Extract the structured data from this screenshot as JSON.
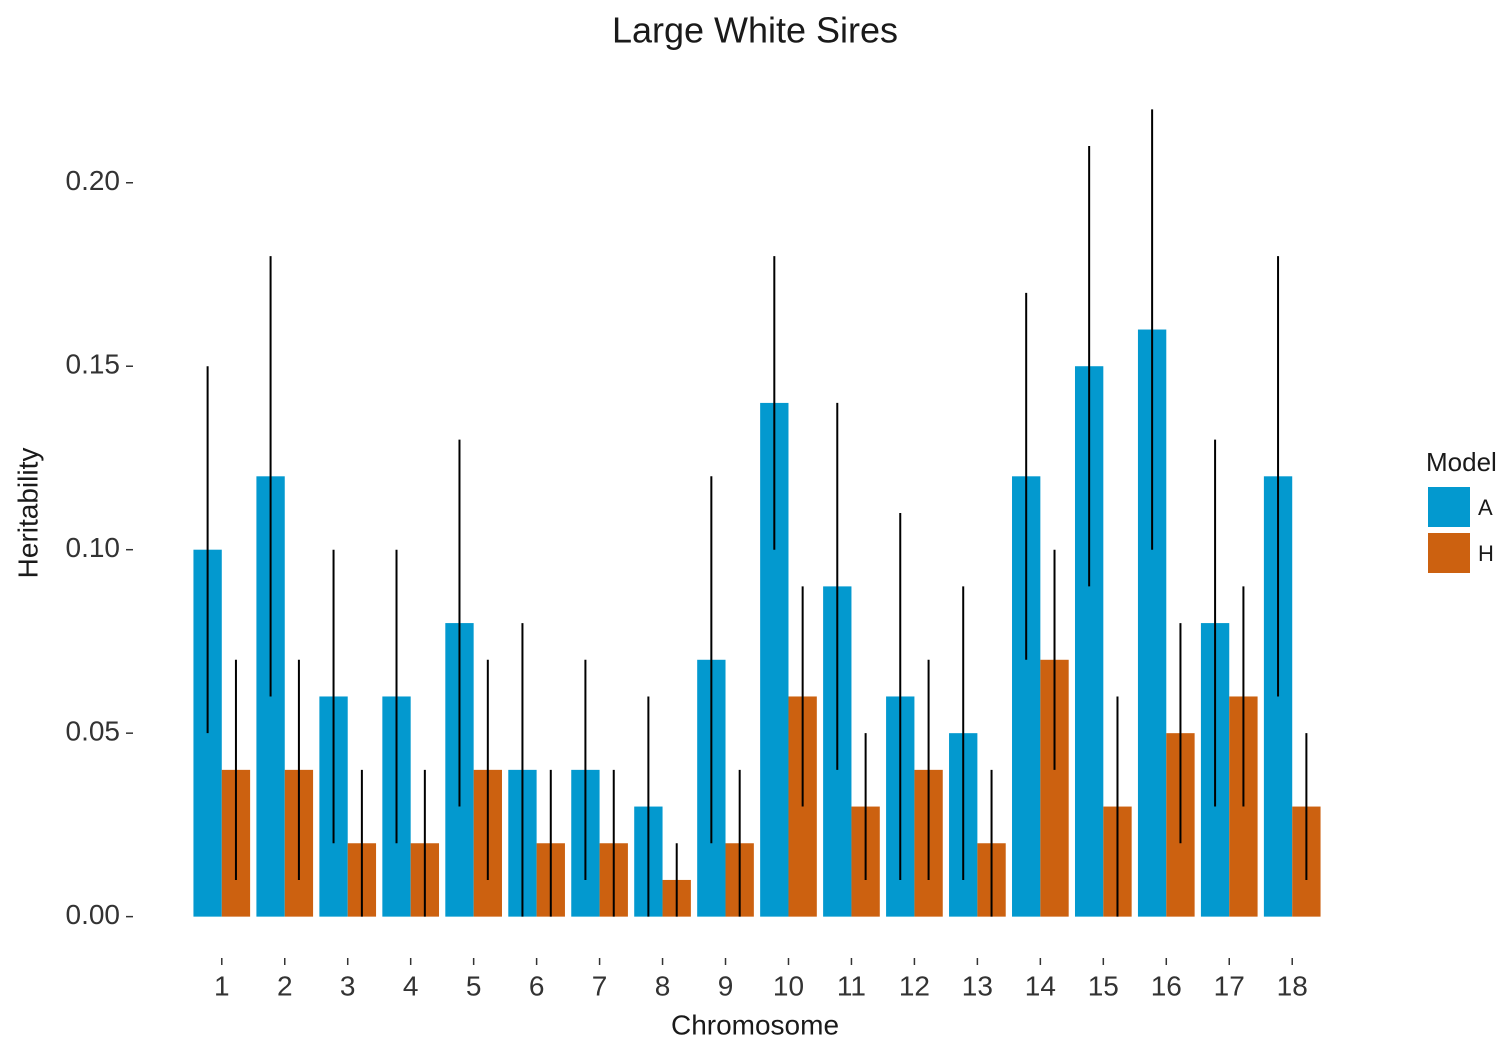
{
  "chart_data": {
    "type": "bar",
    "title": "Large White Sires",
    "x_label": "Chromosome",
    "y_label": "Heritability",
    "categories": [
      "1",
      "2",
      "3",
      "4",
      "5",
      "6",
      "7",
      "8",
      "9",
      "10",
      "11",
      "12",
      "13",
      "14",
      "15",
      "16",
      "17",
      "18"
    ],
    "series": [
      {
        "name": "A",
        "color": "#0399cf",
        "values": [
          0.1,
          0.12,
          0.06,
          0.06,
          0.08,
          0.04,
          0.04,
          0.03,
          0.07,
          0.14,
          0.09,
          0.06,
          0.05,
          0.12,
          0.15,
          0.16,
          0.08,
          0.12
        ],
        "errors": [
          0.05,
          0.06,
          0.04,
          0.04,
          0.05,
          0.04,
          0.03,
          0.03,
          0.05,
          0.04,
          0.05,
          0.05,
          0.04,
          0.05,
          0.06,
          0.06,
          0.05,
          0.06
        ]
      },
      {
        "name": "H",
        "color": "#cc6110",
        "values": [
          0.04,
          0.04,
          0.02,
          0.02,
          0.04,
          0.02,
          0.02,
          0.01,
          0.02,
          0.06,
          0.03,
          0.04,
          0.02,
          0.07,
          0.03,
          0.05,
          0.06,
          0.03
        ],
        "errors": [
          0.03,
          0.03,
          0.02,
          0.02,
          0.03,
          0.02,
          0.02,
          0.01,
          0.02,
          0.03,
          0.02,
          0.03,
          0.02,
          0.03,
          0.03,
          0.03,
          0.03,
          0.02
        ]
      }
    ],
    "legend_title": "Model",
    "ylim": [
      -0.011,
      0.231
    ],
    "yticks": [
      {
        "value": 0,
        "label": "0.00"
      },
      {
        "value": 0.05,
        "label": "0.05"
      },
      {
        "value": 0.1,
        "label": "0.10"
      },
      {
        "value": 0.15,
        "label": "0.15"
      },
      {
        "value": 0.2,
        "label": "0.20"
      }
    ],
    "grid": false
  }
}
